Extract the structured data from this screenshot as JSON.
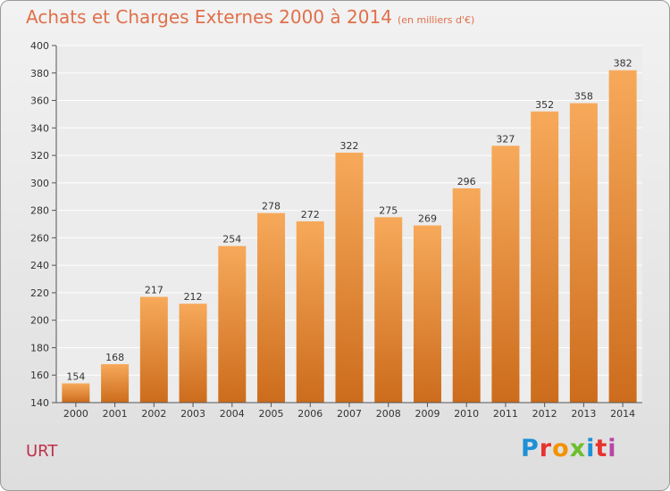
{
  "title": "Achats et Charges Externes 2000 à 2014",
  "subtitle": "(en milliers d'€)",
  "commune": "URT",
  "logo": {
    "text": "Proxiti",
    "colors": [
      "#1e90d6",
      "#e8322e",
      "#f39200",
      "#6cbf2c",
      "#1e90d6",
      "#e8322e",
      "#b845a6"
    ]
  },
  "colors": {
    "bar_light": "#f7a95a",
    "bar_dark": "#cc6c1c",
    "title": "#e0704a",
    "commune": "#c0304a"
  },
  "chart_data": {
    "type": "bar",
    "title": "Achats et Charges Externes 2000 à 2014",
    "subtitle": "(en milliers d'€)",
    "categories": [
      "2000",
      "2001",
      "2002",
      "2003",
      "2004",
      "2005",
      "2006",
      "2007",
      "2008",
      "2009",
      "2010",
      "2011",
      "2012",
      "2013",
      "2014"
    ],
    "values": [
      154,
      168,
      217,
      212,
      254,
      278,
      272,
      322,
      275,
      269,
      296,
      327,
      352,
      358,
      382
    ],
    "ylim": [
      140,
      400
    ],
    "yticks": [
      140,
      160,
      180,
      200,
      220,
      240,
      260,
      280,
      300,
      320,
      340,
      360,
      380,
      400
    ],
    "grid": true,
    "data_labels": true
  }
}
